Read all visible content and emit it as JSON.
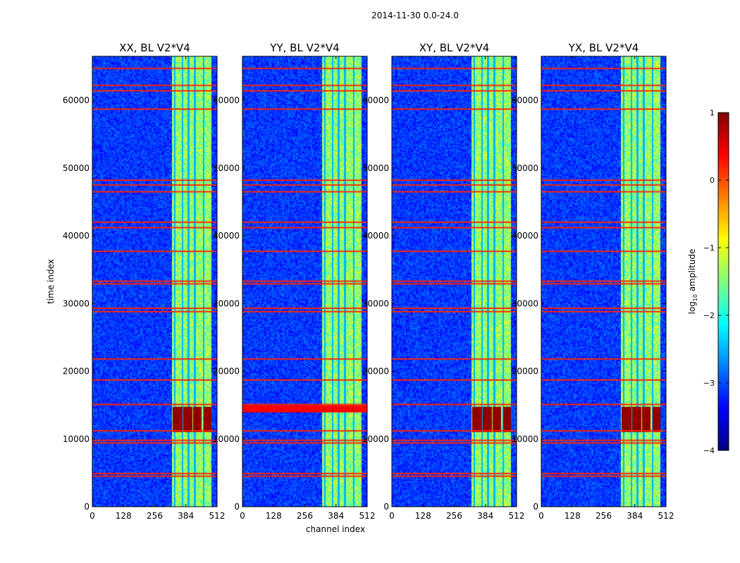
{
  "chart_data": {
    "type": "heatmap",
    "suptitle": "2014-11-30 0.0-24.0",
    "xlabel": "channel index",
    "ylabel": "time index",
    "xlim": [
      0,
      512
    ],
    "ylim": [
      0,
      66500
    ],
    "xticks": [
      0,
      128,
      256,
      384,
      512
    ],
    "yticks": [
      0,
      10000,
      20000,
      30000,
      40000,
      50000,
      60000
    ],
    "colormap": "jet",
    "colorbar": {
      "label_prefix": "log",
      "label_sub": "10",
      "label_suffix": " amplitude",
      "range": [
        -4,
        1
      ],
      "ticks": [
        {
          "value": 1,
          "label": "1"
        },
        {
          "value": 0,
          "label": "0"
        },
        {
          "value": -1,
          "label": "−1"
        },
        {
          "value": -2,
          "label": "−2"
        },
        {
          "value": -3,
          "label": "−3"
        },
        {
          "value": -4,
          "label": "−4"
        }
      ]
    },
    "background_level": -3.1,
    "band_channels": [
      [
        325,
        455
      ],
      [
        455,
        490
      ]
    ],
    "band_level": -1.4,
    "channel_stripes": [
      340,
      372,
      392,
      420,
      455
    ],
    "rfi_rows": [
      64700,
      62200,
      61400,
      58700,
      48200,
      47500,
      46500,
      42000,
      41200,
      37700,
      33300,
      32900,
      29300,
      28800,
      21800,
      18700,
      15100,
      11200,
      9800,
      9400,
      4900,
      4500
    ],
    "rfi_level": 0.2,
    "panels": [
      {
        "title": "XX, BL V2*V4",
        "hot_channels": [
          [
            330,
            370
          ],
          [
            375,
            410
          ],
          [
            415,
            450
          ],
          [
            455,
            490
          ]
        ],
        "hot_time": [
          11000,
          14800
        ],
        "hot_level": 0.9
      },
      {
        "title": "YY, BL V2*V4",
        "hot_channels": [
          [
            0,
            512
          ]
        ],
        "hot_time": [
          13900,
          15000
        ],
        "hot_level": 0.4
      },
      {
        "title": "XY, BL V2*V4",
        "hot_channels": [
          [
            330,
            370
          ],
          [
            375,
            410
          ],
          [
            415,
            450
          ],
          [
            455,
            490
          ]
        ],
        "hot_time": [
          11000,
          14800
        ],
        "hot_level": 0.9
      },
      {
        "title": "YX, BL V2*V4",
        "hot_channels": [
          [
            330,
            370
          ],
          [
            375,
            410
          ],
          [
            415,
            450
          ],
          [
            455,
            490
          ]
        ],
        "hot_time": [
          11000,
          14800
        ],
        "hot_level": 0.9
      }
    ]
  }
}
